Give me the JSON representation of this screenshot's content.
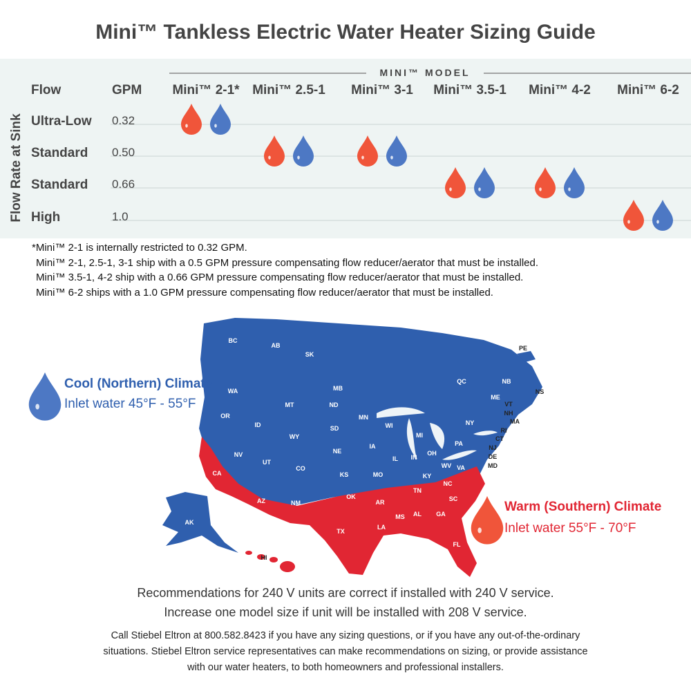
{
  "header": {
    "title": "Mini™ Tankless Electric Water Heater Sizing Guide"
  },
  "table": {
    "group_header": "MINI™ MODEL",
    "side_label": "Flow Rate at Sink",
    "columns": [
      "Flow",
      "GPM",
      "Mini™ 2-1*",
      "Mini™ 2.5-1",
      "Mini™ 3-1",
      "Mini™ 3.5-1",
      "Mini™ 4-2",
      "Mini™ 6-2"
    ],
    "rows": [
      [
        "Ultra-Low",
        "0.32"
      ],
      [
        "Standard",
        "0.50"
      ],
      [
        "Standard",
        "0.66"
      ],
      [
        "High",
        "1.0"
      ]
    ]
  },
  "footnotes": [
    "*Mini™ 2-1 is internally restricted to 0.32 GPM.",
    "Mini™ 2-1, 2.5-1, 3-1 ship with a 0.5 GPM pressure compensating flow reducer/aerator that must be installed.",
    "Mini™ 3.5-1, 4-2 ship with a 0.66 GPM pressure compensating flow reducer/aerator that must be installed.",
    "Mini™ 6-2 ships with a 1.0 GPM pressure compensating flow reducer/aerator that must be installed."
  ],
  "map": {
    "cool": {
      "title": "Cool (Northern) Climate",
      "text": "Inlet water 45°F - 55°F"
    },
    "warm": {
      "title": "Warm (Southern) Climate",
      "text": "Inlet water 55°F - 70°F"
    },
    "regions": [
      "BC",
      "AB",
      "SK",
      "MB",
      "QC",
      "PE",
      "NB",
      "NS",
      "WA",
      "OR",
      "MT",
      "ND",
      "MN",
      "WI",
      "MI",
      "ME",
      "VT",
      "NH",
      "MA",
      "RI",
      "CT",
      "NY",
      "PA",
      "NJ",
      "DE",
      "MD",
      "ID",
      "WY",
      "SD",
      "IA",
      "IL",
      "IN",
      "OH",
      "WV",
      "VA",
      "NV",
      "UT",
      "CO",
      "NE",
      "KS",
      "MO",
      "KY",
      "CA",
      "AZ",
      "NM",
      "OK",
      "AR",
      "TN",
      "NC",
      "SC",
      "GA",
      "AL",
      "MS",
      "LA",
      "TX",
      "FL",
      "AK",
      "HI"
    ]
  },
  "notes": [
    "Recommendations for 240 V units are correct if installed with 240 V service.",
    "Increase one model size if unit will be installed with 208 V service."
  ],
  "contact": [
    "Call Stiebel Eltron at 800.582.8423 if you have any sizing questions, or if you have any out-of-the-ordinary",
    "situations. Stiebel Eltron service representatives can make recommendations on sizing, or provide assistance",
    "with our water heaters, to both homeowners and professional installers."
  ]
}
